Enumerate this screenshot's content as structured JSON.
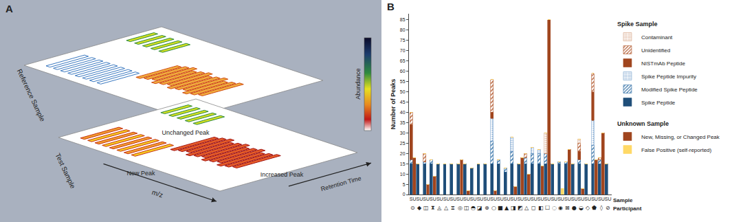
{
  "diagram": {
    "panel_label": "A",
    "planes": [
      {
        "label": "Reference Sample"
      },
      {
        "label": "Test Sample"
      }
    ],
    "peak_labels": [
      "Unchanged Peak",
      "New Peak",
      "Increased Peak"
    ],
    "axes": {
      "mz": "m/z",
      "retention": "Retention Time"
    },
    "color_scale": {
      "label": "Abundance"
    }
  },
  "chart_data": {
    "type": "bar",
    "annotations": [
      "B"
    ],
    "ylabel": "Number of Peaks",
    "xlabel": "Sample",
    "stacked": true,
    "grid": false,
    "legend": "right",
    "ylim": [
      0,
      88
    ],
    "yticks": [
      0,
      5,
      10,
      15,
      20,
      25,
      30,
      35,
      40,
      45,
      50,
      55,
      60,
      65,
      70,
      75,
      80,
      85
    ],
    "categories": [
      "S",
      "U",
      "S",
      "U",
      "S",
      "U",
      "S",
      "U",
      "S",
      "U",
      "S",
      "U",
      "S",
      "U",
      "S",
      "U",
      "S",
      "U",
      "S",
      "U",
      "S",
      "U",
      "S",
      "U",
      "S",
      "U",
      "S",
      "U",
      "S",
      "U",
      "S",
      "U",
      "S",
      "U",
      "S",
      "U",
      "S",
      "U",
      "S",
      "U",
      "S",
      "U",
      "S",
      "U",
      "S",
      "U",
      "S",
      "U",
      "S",
      "U",
      "S",
      "U",
      "S",
      "U",
      "S",
      "U",
      "S",
      "U",
      "S",
      "U"
    ],
    "participants": {
      "label": "Participant",
      "symbols": [
        "⊙",
        "◆",
        "◫",
        "⧗",
        "◬",
        "△",
        "⧖",
        "◎",
        "◫",
        "◓",
        "◪",
        "⊕",
        "○",
        "■",
        "▲",
        "◨",
        "◩",
        "△",
        "◻",
        "◧",
        "☐",
        "◌",
        "◉",
        "⊠",
        "●",
        "◒",
        "◇",
        "⬟",
        "◊",
        "⊘"
      ]
    },
    "series_groups": [
      {
        "name": "Spike Sample",
        "series": [
          {
            "name": "Spike Peptide",
            "color": "#1f4e79",
            "marker": "solid",
            "values": [
              15,
              0,
              15,
              0,
              15,
              0,
              15,
              0,
              15,
              0,
              15,
              0,
              15,
              0,
              15,
              0,
              15,
              0,
              13,
              0,
              15,
              0,
              15,
              0,
              15,
              0,
              15,
              0,
              11,
              0,
              15,
              0,
              15,
              0,
              15,
              0,
              15,
              0,
              15,
              0,
              15,
              0,
              15,
              0,
              15,
              0,
              15,
              0,
              15,
              0,
              15,
              0,
              15,
              0,
              15,
              0,
              15,
              0,
              15,
              0
            ]
          },
          {
            "name": "Modified Spike Peptide",
            "color": "#2e6da4",
            "marker": "hatch",
            "values": [
              2,
              0,
              0,
              0,
              1,
              0,
              2,
              0,
              0,
              0,
              0,
              0,
              0,
              0,
              0,
              0,
              0,
              0,
              0,
              0,
              0,
              0,
              0,
              0,
              11,
              0,
              2,
              0,
              2,
              0,
              6,
              0,
              0,
              0,
              3,
              0,
              5,
              0,
              5,
              0,
              5,
              0,
              0,
              0,
              1,
              0,
              1,
              0,
              0,
              0,
              2,
              0,
              0,
              0,
              9,
              0,
              2,
              0,
              0,
              0
            ]
          },
          {
            "name": "Spike Peptide Impurity",
            "color": "#7fa7d0",
            "marker": "dots",
            "values": [
              0,
              0,
              0,
              0,
              0,
              0,
              0,
              0,
              0,
              0,
              0,
              0,
              0,
              0,
              0,
              0,
              0,
              0,
              0,
              0,
              0,
              0,
              0,
              0,
              11,
              0,
              0,
              0,
              0,
              0,
              7,
              0,
              0,
              0,
              0,
              0,
              3,
              0,
              2,
              0,
              0,
              0,
              0,
              0,
              0,
              0,
              0,
              0,
              0,
              0,
              0,
              0,
              0,
              0,
              12,
              0,
              0,
              0,
              0,
              0
            ]
          },
          {
            "name": "NISTmAb Peptide",
            "color": "#a0451e",
            "marker": "solid",
            "values": [
              17,
              0,
              0,
              0,
              0,
              0,
              0,
              0,
              0,
              0,
              0,
              0,
              0,
              0,
              0,
              0,
              0,
              0,
              0,
              0,
              0,
              0,
              0,
              0,
              3,
              0,
              0,
              0,
              0,
              0,
              0,
              0,
              0,
              0,
              0,
              0,
              0,
              0,
              0,
              0,
              0,
              0,
              0,
              0,
              0,
              0,
              0,
              0,
              0,
              0,
              4,
              0,
              0,
              0,
              14,
              0,
              0,
              0,
              0,
              0
            ]
          },
          {
            "name": "Unidentified",
            "color": "#b0552a",
            "marker": "hatch",
            "values": [
              6,
              0,
              0,
              0,
              4,
              0,
              0,
              0,
              0,
              0,
              0,
              0,
              0,
              0,
              0,
              0,
              0,
              0,
              0,
              0,
              0,
              0,
              0,
              0,
              16,
              0,
              0,
              0,
              0,
              0,
              0,
              0,
              0,
              0,
              2,
              0,
              0,
              0,
              0,
              0,
              0,
              0,
              0,
              0,
              0,
              0,
              0,
              0,
              0,
              0,
              4,
              0,
              0,
              0,
              9,
              0,
              1,
              0,
              0,
              0
            ]
          },
          {
            "name": "Contaminant",
            "color": "#d9a88a",
            "marker": "dots",
            "values": [
              0,
              0,
              0,
              0,
              0,
              0,
              0,
              0,
              0,
              0,
              0,
              0,
              0,
              0,
              0,
              0,
              0,
              0,
              0,
              0,
              0,
              0,
              0,
              0,
              0,
              0,
              0,
              0,
              0,
              0,
              0,
              0,
              0,
              0,
              0,
              0,
              0,
              0,
              0,
              0,
              10,
              0,
              0,
              0,
              0,
              0,
              0,
              0,
              0,
              0,
              2,
              0,
              0,
              0,
              0,
              0,
              0,
              0,
              0,
              0
            ]
          }
        ]
      },
      {
        "name": "Unknown Sample",
        "series": [
          {
            "name": "New, Missing, or Changed Peak",
            "color": "#a0451e",
            "marker": "solid",
            "values": [
              0,
              18,
              0,
              0,
              0,
              5,
              0,
              9,
              0,
              0,
              0,
              0,
              0,
              0,
              0,
              17,
              0,
              2,
              0,
              0,
              0,
              0,
              0,
              0,
              0,
              2,
              0,
              0,
              0,
              0,
              0,
              4,
              0,
              18,
              0,
              10,
              0,
              0,
              0,
              14,
              0,
              85,
              0,
              0,
              0,
              0,
              0,
              22,
              0,
              0,
              0,
              3,
              0,
              0,
              0,
              17,
              0,
              30,
              0,
              0
            ]
          },
          {
            "name": "False Positive (self-reported)",
            "color": "#ffd966",
            "marker": "solid",
            "values": [
              0,
              0,
              0,
              0,
              0,
              0,
              0,
              0,
              0,
              0,
              0,
              0,
              0,
              0,
              0,
              0,
              0,
              0,
              0,
              0,
              0,
              0,
              0,
              0,
              0,
              0,
              0,
              0,
              0,
              0,
              0,
              0,
              0,
              0,
              0,
              0,
              0,
              0,
              0,
              0,
              0,
              0,
              0,
              0,
              0,
              3,
              0,
              0,
              0,
              0,
              0,
              0,
              0,
              0,
              0,
              0,
              0,
              0,
              0,
              0
            ]
          }
        ]
      }
    ]
  }
}
